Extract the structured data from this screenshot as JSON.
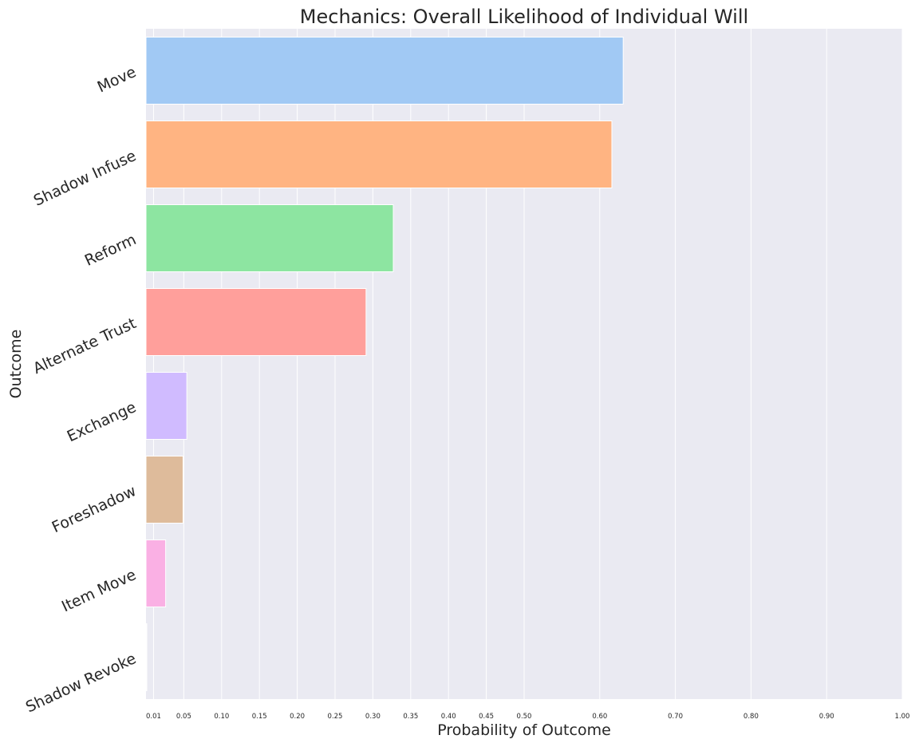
{
  "chart_data": {
    "type": "bar",
    "orientation": "horizontal",
    "title": "Mechanics: Overall Likelihood of Individual Will",
    "xlabel": "Probability of Outcome",
    "ylabel": "Outcome",
    "xlim": [
      0,
      1.0
    ],
    "xticks": [
      "0.01",
      "0.05",
      "0.10",
      "0.15",
      "0.20",
      "0.25",
      "0.30",
      "0.35",
      "0.40",
      "0.45",
      "0.50",
      "0.60",
      "0.70",
      "0.80",
      "0.90",
      "1.00"
    ],
    "grid": true,
    "categories": [
      "Move",
      "Shadow Infuse",
      "Reform",
      "Alternate Trust",
      "Exchange",
      "Foreshadow",
      "Item Move",
      "Shadow Revoke"
    ],
    "values": [
      0.631,
      0.616,
      0.327,
      0.291,
      0.054,
      0.049,
      0.026,
      0.001
    ],
    "colors": [
      "#a1c9f4",
      "#ffb482",
      "#8de5a1",
      "#ff9f9b",
      "#d0bbff",
      "#debb9b",
      "#fab0e4",
      "#cfcfcf"
    ]
  }
}
